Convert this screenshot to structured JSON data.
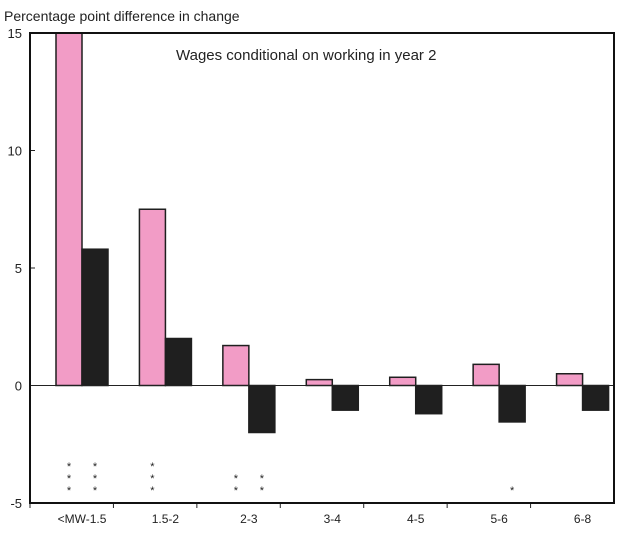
{
  "chart_data": {
    "type": "bar",
    "ylabel": "Percentage point difference in change",
    "annotation": "Wages conditional on working in year 2",
    "categories": [
      "<MW-1.5",
      "1.5-2",
      "2-3",
      "3-4",
      "4-5",
      "5-6",
      "6-8"
    ],
    "ylim": [
      -5,
      15
    ],
    "yticks": [
      -5,
      0,
      5,
      10,
      15
    ],
    "series": [
      {
        "color": "#f29cc6",
        "values": [
          15.0,
          7.5,
          1.7,
          0.25,
          0.35,
          0.9,
          0.5
        ]
      },
      {
        "color": "#1f1f1f",
        "values": [
          5.8,
          2.0,
          -2.0,
          -1.05,
          -1.2,
          -1.55,
          -1.05
        ]
      }
    ],
    "significance": [
      [
        3,
        3
      ],
      [
        3,
        0
      ],
      [
        2,
        2
      ],
      [
        0,
        0
      ],
      [
        0,
        0
      ],
      [
        0,
        1
      ],
      [
        0,
        0
      ]
    ],
    "significance_symbol": "*",
    "grid": false,
    "legend": "none"
  }
}
